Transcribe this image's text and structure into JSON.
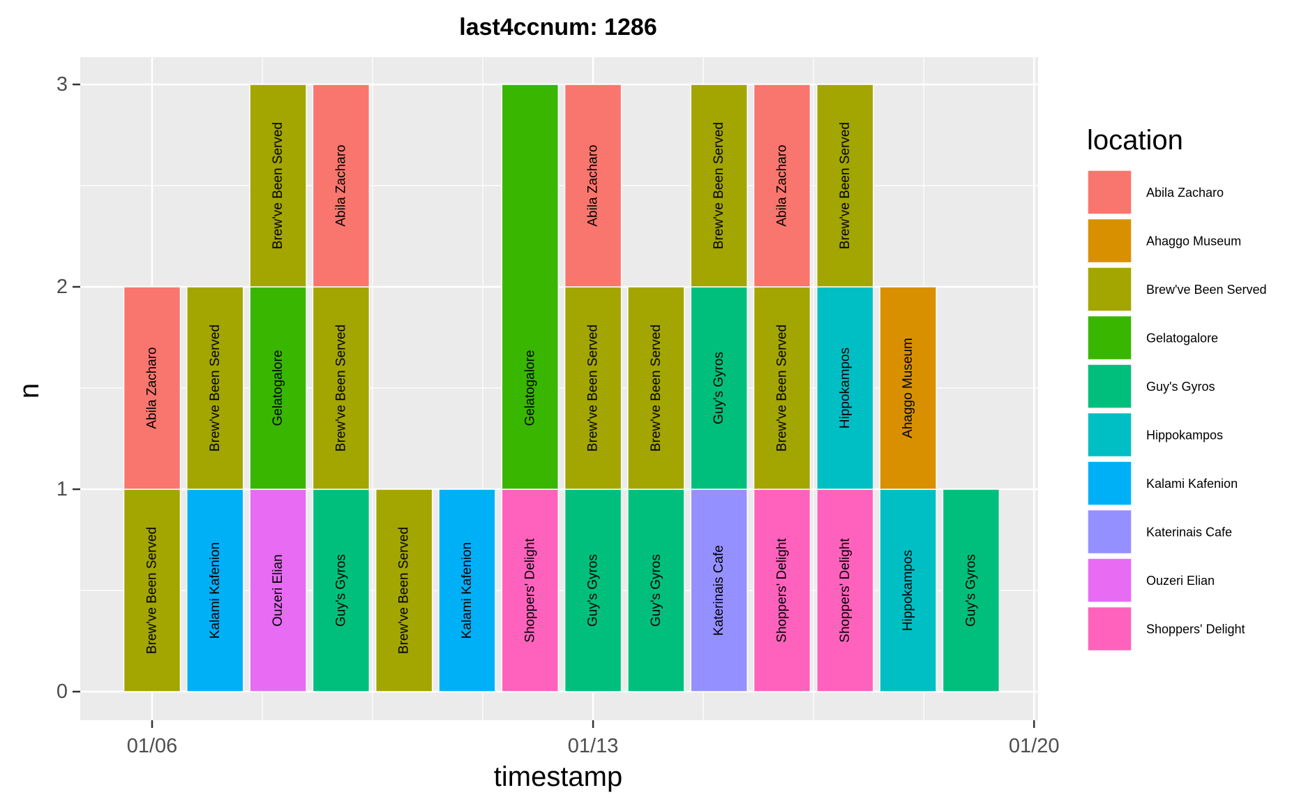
{
  "chart_data": {
    "type": "bar",
    "stacked": true,
    "title": "last4ccnum: 1286",
    "xlabel": "timestamp",
    "ylabel": "n",
    "x_ticks": [
      "01/06",
      "01/13",
      "01/20"
    ],
    "y_ticks": [
      "0",
      "1",
      "2",
      "3"
    ],
    "ylim": [
      0,
      3
    ],
    "grid": true,
    "legend": {
      "title": "location",
      "position": "right",
      "entries": [
        {
          "name": "Abila Zacharo",
          "color": "#F8766D"
        },
        {
          "name": "Ahaggo Museum",
          "color": "#D89000"
        },
        {
          "name": "Brew've Been Served",
          "color": "#A3A500"
        },
        {
          "name": "Gelatogalore",
          "color": "#39B600"
        },
        {
          "name": "Guy's Gyros",
          "color": "#00BF7D"
        },
        {
          "name": "Hippokampos",
          "color": "#00BFC4"
        },
        {
          "name": "Kalami Kafenion",
          "color": "#00B0F6"
        },
        {
          "name": "Katerinais Cafe",
          "color": "#9590FF"
        },
        {
          "name": "Ouzeri Elian",
          "color": "#E76BF3"
        },
        {
          "name": "Shoppers' Delight",
          "color": "#FF62BC"
        }
      ]
    },
    "bars": [
      {
        "date": "01/06",
        "stack": [
          {
            "location": "Brew've Been Served",
            "n": 1
          },
          {
            "location": "Abila Zacharo",
            "n": 1
          }
        ]
      },
      {
        "date": "01/07",
        "stack": [
          {
            "location": "Kalami Kafenion",
            "n": 1
          },
          {
            "location": "Brew've Been Served",
            "n": 1
          }
        ]
      },
      {
        "date": "01/08",
        "stack": [
          {
            "location": "Ouzeri Elian",
            "n": 1
          },
          {
            "location": "Gelatogalore",
            "n": 1
          },
          {
            "location": "Brew've Been Served",
            "n": 1
          }
        ]
      },
      {
        "date": "01/09",
        "stack": [
          {
            "location": "Guy's Gyros",
            "n": 1
          },
          {
            "location": "Brew've Been Served",
            "n": 1
          },
          {
            "location": "Abila Zacharo",
            "n": 1
          }
        ]
      },
      {
        "date": "01/10",
        "stack": [
          {
            "location": "Brew've Been Served",
            "n": 1
          }
        ]
      },
      {
        "date": "01/11",
        "stack": [
          {
            "location": "Kalami Kafenion",
            "n": 1
          }
        ]
      },
      {
        "date": "01/12",
        "stack": [
          {
            "location": "Shoppers' Delight",
            "n": 1
          },
          {
            "location": "Gelatogalore",
            "n": 2
          }
        ]
      },
      {
        "date": "01/13",
        "stack": [
          {
            "location": "Guy's Gyros",
            "n": 1
          },
          {
            "location": "Brew've Been Served",
            "n": 1
          },
          {
            "location": "Abila Zacharo",
            "n": 1
          }
        ]
      },
      {
        "date": "01/14",
        "stack": [
          {
            "location": "Guy's Gyros",
            "n": 1
          },
          {
            "location": "Brew've Been Served",
            "n": 1
          }
        ]
      },
      {
        "date": "01/15",
        "stack": [
          {
            "location": "Katerinais Cafe",
            "n": 1
          },
          {
            "location": "Guy's Gyros",
            "n": 1
          },
          {
            "location": "Brew've Been Served",
            "n": 1
          }
        ]
      },
      {
        "date": "01/16",
        "stack": [
          {
            "location": "Shoppers' Delight",
            "n": 1
          },
          {
            "location": "Brew've Been Served",
            "n": 1
          },
          {
            "location": "Abila Zacharo",
            "n": 1
          }
        ]
      },
      {
        "date": "01/17",
        "stack": [
          {
            "location": "Shoppers' Delight",
            "n": 1
          },
          {
            "location": "Hippokampos",
            "n": 1
          },
          {
            "location": "Brew've Been Served",
            "n": 1
          }
        ]
      },
      {
        "date": "01/18",
        "stack": [
          {
            "location": "Hippokampos",
            "n": 1
          },
          {
            "location": "Ahaggo Museum",
            "n": 1
          }
        ]
      },
      {
        "date": "01/19",
        "stack": [
          {
            "location": "Guy's Gyros",
            "n": 1
          }
        ]
      }
    ]
  }
}
